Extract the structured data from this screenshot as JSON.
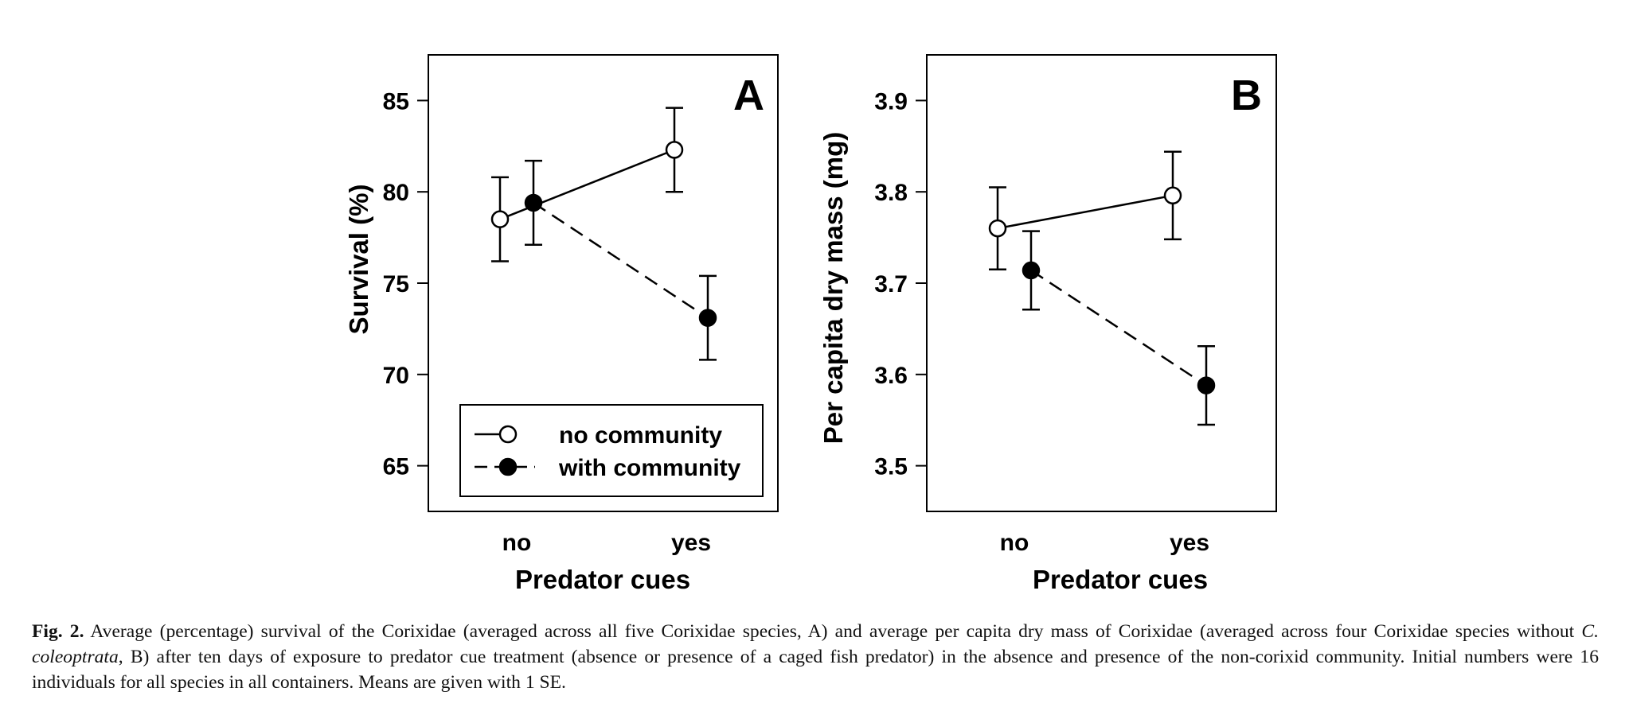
{
  "chart_data": [
    {
      "type": "line",
      "panel_label": "A",
      "xlabel": "Predator cues",
      "ylabel": "Survival (%)",
      "categories": [
        "no",
        "yes"
      ],
      "ylim": [
        62.5,
        87.5
      ],
      "yticks": [
        "65",
        "70",
        "75",
        "80",
        "85"
      ],
      "ytick_values": [
        65,
        70,
        75,
        80,
        85
      ],
      "legend": {
        "placement": "bottom-left",
        "entries": [
          "no community",
          "with community"
        ]
      },
      "series": [
        {
          "name": "no community",
          "marker": "open-circle",
          "line": "solid",
          "values": [
            78.5,
            82.3
          ],
          "se": [
            2.3,
            2.3
          ]
        },
        {
          "name": "with community",
          "marker": "filled-circle",
          "line": "dashed",
          "values": [
            79.4,
            73.1
          ],
          "se": [
            2.3,
            2.3
          ]
        }
      ]
    },
    {
      "type": "line",
      "panel_label": "B",
      "xlabel": "Predator cues",
      "ylabel": "Per capita dry mass (mg)",
      "categories": [
        "no",
        "yes"
      ],
      "ylim": [
        3.45,
        3.95
      ],
      "yticks": [
        "3.5",
        "3.6",
        "3.7",
        "3.8",
        "3.9"
      ],
      "ytick_values": [
        3.5,
        3.6,
        3.7,
        3.8,
        3.9
      ],
      "series": [
        {
          "name": "no community",
          "marker": "open-circle",
          "line": "solid",
          "values": [
            3.76,
            3.796
          ],
          "se": [
            0.045,
            0.048
          ]
        },
        {
          "name": "with community",
          "marker": "filled-circle",
          "line": "dashed",
          "values": [
            3.714,
            3.588
          ],
          "se": [
            0.043,
            0.043
          ]
        }
      ]
    }
  ],
  "caption": {
    "label": "Fig. 2.",
    "text_before": "Average (percentage) survival of the Corixidae (averaged across all five Corixidae species, A) and average per capita dry mass of Corixidae (averaged across four Corixidae species without ",
    "species": "C. coleoptrata",
    "text_after": ", B) after ten days of exposure to predator cue treatment (absence or presence of a caged fish predator) in the absence and presence of the non-corixid community. Initial numbers were 16 individuals for all species in all containers. Means are given with 1 SE."
  }
}
